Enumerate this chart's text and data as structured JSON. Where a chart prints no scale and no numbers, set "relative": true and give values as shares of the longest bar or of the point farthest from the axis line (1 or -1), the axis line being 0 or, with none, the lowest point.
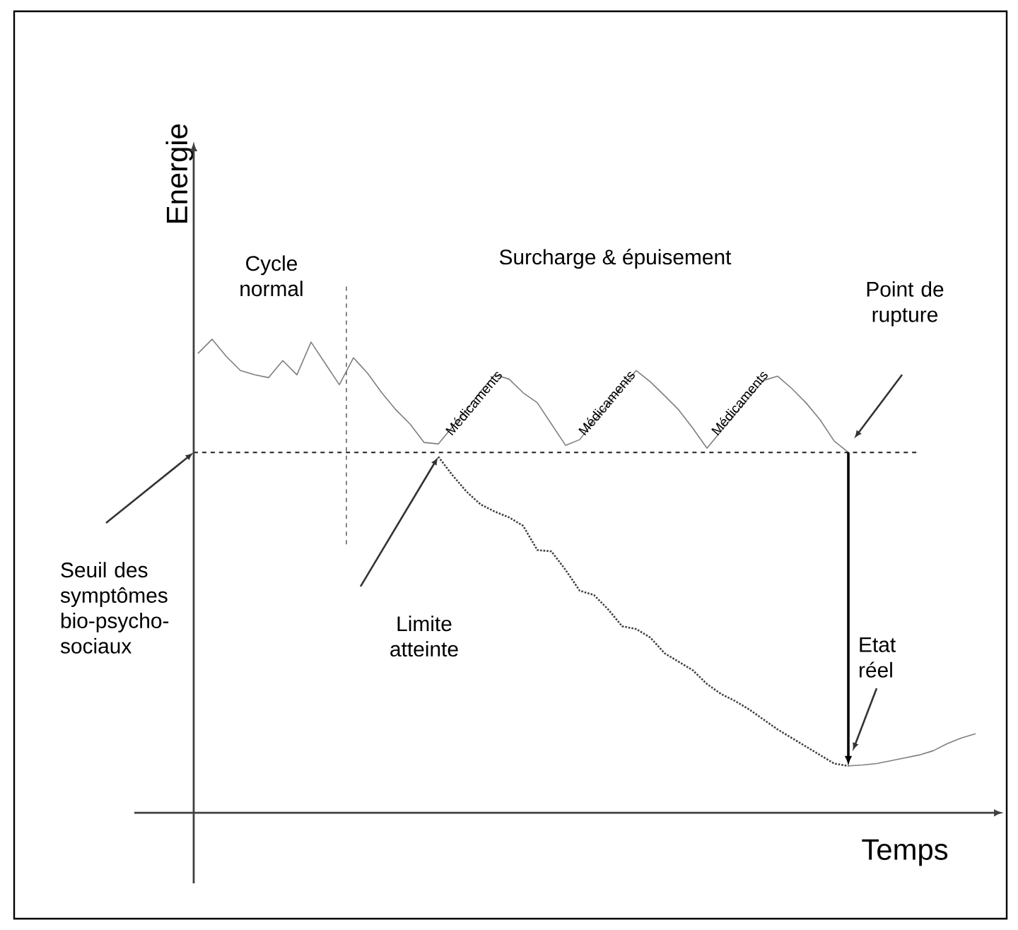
{
  "chart_data": {
    "type": "line",
    "relative": true,
    "xlabel": "Temps",
    "ylabel": "Energie",
    "categories": [
      null,
      null,
      null,
      null,
      null,
      null,
      null,
      null,
      null,
      null,
      null,
      null,
      null,
      null,
      null,
      null,
      null,
      null,
      null,
      null,
      null,
      null,
      null,
      null,
      null,
      null,
      null,
      null,
      null,
      null,
      null,
      null,
      null,
      null,
      null,
      null,
      null,
      null,
      null,
      null,
      null,
      null,
      null,
      null,
      null,
      null,
      null,
      null,
      null,
      null,
      null,
      null,
      null,
      null,
      null,
      null
    ],
    "series": [
      {
        "color": "#7f7f7f",
        "line_style": "solid",
        "values": [
          0.97,
          1.0,
          0.964,
          0.934,
          0.925,
          0.919,
          0.955,
          0.925,
          0.994,
          0.949,
          0.904,
          0.961,
          0.928,
          0.887,
          0.851,
          0.821,
          0.782,
          0.779,
          0.815,
          0.851,
          0.89,
          0.925,
          0.916,
          0.887,
          0.866,
          0.821,
          0.776,
          0.788,
          0.827,
          0.863,
          0.899,
          0.934,
          0.91,
          0.881,
          0.851,
          0.812,
          0.77,
          0.806,
          0.842,
          0.878,
          0.913,
          0.922,
          0.896,
          0.866,
          0.83,
          0.785,
          0.761,
          null,
          null,
          null,
          null,
          null,
          null,
          null,
          null,
          null
        ]
      },
      {
        "color": "#404040",
        "line_style": "dotted",
        "values": [
          null,
          null,
          null,
          null,
          null,
          null,
          null,
          null,
          null,
          null,
          null,
          null,
          null,
          null,
          null,
          null,
          null,
          0.752,
          0.713,
          0.678,
          0.651,
          0.636,
          0.624,
          0.606,
          0.555,
          0.552,
          0.513,
          0.469,
          0.46,
          0.43,
          0.394,
          0.388,
          0.37,
          0.337,
          0.319,
          0.301,
          0.272,
          0.251,
          0.236,
          0.218,
          0.197,
          0.176,
          0.158,
          0.14,
          0.122,
          0.104,
          0.099,
          null,
          null,
          null,
          null,
          null,
          null,
          null,
          null,
          null
        ]
      },
      {
        "color": "#7f7f7f",
        "line_style": "solid",
        "values": [
          null,
          null,
          null,
          null,
          null,
          null,
          null,
          null,
          null,
          null,
          null,
          null,
          null,
          null,
          null,
          null,
          null,
          null,
          null,
          null,
          null,
          null,
          null,
          null,
          null,
          null,
          null,
          null,
          null,
          null,
          null,
          null,
          null,
          null,
          null,
          null,
          null,
          null,
          null,
          null,
          null,
          null,
          null,
          null,
          null,
          null,
          0.099,
          0.101,
          0.104,
          0.11,
          0.116,
          0.122,
          0.131,
          0.146,
          0.158,
          0.167
        ]
      }
    ],
    "ref_lines": [
      {
        "axis": "y",
        "value": 0.761,
        "color": "#202020",
        "line_style": "dashed"
      }
    ],
    "annotations": [
      "Cycle normal",
      "Surcharge & épuisement",
      "Médicaments",
      "Médicaments",
      "Médicaments",
      "Point de rupture",
      "Seuil des symptômes bio-psycho-sociaux",
      "Limite atteinte",
      "Etat réel"
    ],
    "marker": "none"
  }
}
